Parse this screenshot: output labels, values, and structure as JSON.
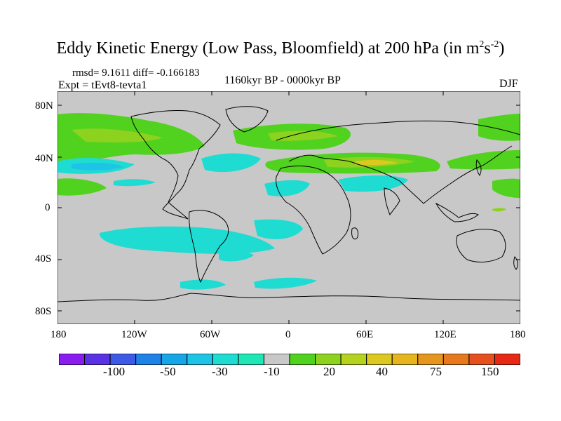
{
  "title_parts": {
    "main": "Eddy Kinetic Energy (Low Pass, Bloomfield) at 200 hPa (in m",
    "sup1": "2",
    "mid": "s",
    "sup2": "-2",
    "end": ")"
  },
  "stats": "rmsd= 9.1611 diff= -0.166183",
  "expt": "Expt = tEvt8-tevta1",
  "period": "1160kyr BP - 0000kyr BP",
  "season": "DJF",
  "lat_labels": [
    "80N",
    "40N",
    "0",
    "40S",
    "80S"
  ],
  "lon_labels": [
    "180",
    "120W",
    "60W",
    "0",
    "60E",
    "120E",
    "180"
  ],
  "colorbar": {
    "labels": [
      "-100",
      "-50",
      "-30",
      "-10",
      "20",
      "40",
      "75",
      "150"
    ],
    "colors": [
      "#8a1cf0",
      "#5a32e6",
      "#3c5ae6",
      "#1e82e6",
      "#14a6e6",
      "#1ec4e6",
      "#1edcd2",
      "#1ee6b4",
      "#c8c8c8",
      "#50d21e",
      "#8cd21e",
      "#b4d21e",
      "#dcc81e",
      "#e6b41e",
      "#e6961e",
      "#e6781e",
      "#e6501e",
      "#e62814"
    ]
  },
  "map_colors": {
    "background": "#c8c8c8",
    "coast": "#000000"
  }
}
